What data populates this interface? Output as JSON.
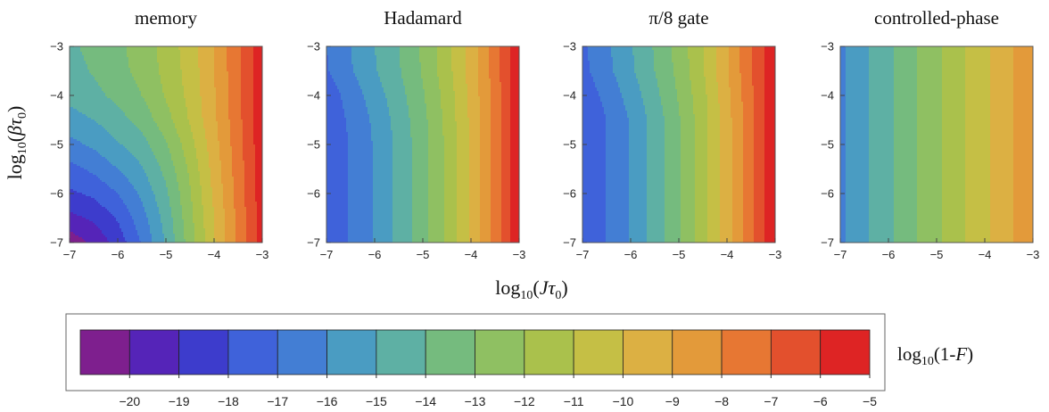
{
  "chart_data": {
    "type": "heatmap",
    "xlabel": "log10(Jτ0)",
    "ylabel": "log10(βτ0)",
    "xlim": [
      -7,
      -3
    ],
    "ylim": [
      -7,
      -3
    ],
    "x_ticks": [
      "−7",
      "−6",
      "−5",
      "−4",
      "−3"
    ],
    "y_ticks": [
      "−7",
      "−6",
      "−5",
      "−4",
      "−3"
    ],
    "colorbar": {
      "label": "log10(1-F)",
      "levels": [
        -21,
        -20,
        -19,
        -18,
        -17,
        -16,
        -15,
        -14,
        -13,
        -12,
        -11,
        -10,
        -9,
        -8,
        -7,
        -6,
        -5,
        -4
      ],
      "tick_values": [
        -20,
        -19,
        -18,
        -17,
        -16,
        -15,
        -14,
        -13,
        -12,
        -11,
        -10,
        -9,
        -8,
        -7,
        -6,
        -5
      ],
      "tick_labels": [
        "−20",
        "−19",
        "−18",
        "−17",
        "−16",
        "−15",
        "−14",
        "−13",
        "−12",
        "−11",
        "−10",
        "−9",
        "−8",
        "−7",
        "−6",
        "−5"
      ],
      "colors": [
        "#7e1f8e",
        "#5524b8",
        "#3d3ccc",
        "#3f62da",
        "#437ed4",
        "#4a9cc2",
        "#5eb0a4",
        "#75bb7e",
        "#8fc062",
        "#aac14c",
        "#c5bf45",
        "#dcb043",
        "#e39a3a",
        "#e77733",
        "#e3502d",
        "#de2424"
      ]
    },
    "panels": [
      {
        "title": "memory",
        "contour_step": 1,
        "x_nodes": [
          -7,
          -6.5,
          -6,
          -5.5,
          -5,
          -4.5,
          -4,
          -3.5,
          -3
        ],
        "y_nodes": [
          -3,
          -3.5,
          -4,
          -4.5,
          -5,
          -5.5,
          -6,
          -6.5,
          -7
        ],
        "values": [
          [
            -14.2,
            -13.7,
            -13.2,
            -12.6,
            -11.6,
            -10.5,
            -9.0,
            -7.2,
            -5.2
          ],
          [
            -14.4,
            -13.9,
            -13.3,
            -12.7,
            -11.7,
            -10.6,
            -9.0,
            -7.2,
            -5.2
          ],
          [
            -14.7,
            -14.3,
            -13.7,
            -13.0,
            -11.9,
            -10.7,
            -9.1,
            -7.2,
            -5.2
          ],
          [
            -15.4,
            -15.0,
            -14.4,
            -13.6,
            -12.4,
            -10.9,
            -9.2,
            -7.3,
            -5.3
          ],
          [
            -16.3,
            -15.8,
            -15.1,
            -14.4,
            -13.1,
            -11.4,
            -9.4,
            -7.4,
            -5.3
          ],
          [
            -17.3,
            -16.8,
            -16.0,
            -15.1,
            -13.7,
            -11.8,
            -9.6,
            -7.5,
            -5.4
          ],
          [
            -18.2,
            -17.8,
            -17.0,
            -15.8,
            -14.2,
            -12.1,
            -9.8,
            -7.6,
            -5.4
          ],
          [
            -19.3,
            -18.8,
            -17.9,
            -16.4,
            -14.6,
            -12.3,
            -10.0,
            -7.7,
            -5.5
          ],
          [
            -20.6,
            -19.8,
            -18.6,
            -16.9,
            -14.9,
            -12.5,
            -10.1,
            -7.8,
            -5.5
          ]
        ]
      },
      {
        "title": "Hadamard",
        "contour_step": 0.5,
        "x_nodes": [
          -7,
          -6.5,
          -6,
          -5.5,
          -5,
          -4.5,
          -4,
          -3.5,
          -3
        ],
        "y_nodes": [
          -3,
          -3.5,
          -4,
          -4.5,
          -5,
          -5.5,
          -6,
          -6.5,
          -7
        ],
        "values": [
          [
            -17.0,
            -16.0,
            -15.0,
            -14.0,
            -12.8,
            -11.4,
            -9.6,
            -7.5,
            -5.1
          ],
          [
            -17.1,
            -16.1,
            -15.1,
            -14.1,
            -12.9,
            -11.4,
            -9.6,
            -7.5,
            -5.1
          ],
          [
            -17.6,
            -16.6,
            -15.5,
            -14.4,
            -13.1,
            -11.6,
            -9.7,
            -7.6,
            -5.1
          ],
          [
            -17.8,
            -16.8,
            -15.8,
            -14.6,
            -13.3,
            -11.7,
            -9.8,
            -7.6,
            -5.1
          ],
          [
            -17.9,
            -16.9,
            -15.9,
            -14.7,
            -13.4,
            -11.8,
            -9.8,
            -7.6,
            -5.1
          ],
          [
            -17.9,
            -16.9,
            -15.9,
            -14.7,
            -13.4,
            -11.8,
            -9.8,
            -7.6,
            -5.1
          ],
          [
            -17.9,
            -16.9,
            -15.9,
            -14.7,
            -13.4,
            -11.8,
            -9.8,
            -7.6,
            -5.1
          ],
          [
            -17.9,
            -16.9,
            -15.9,
            -14.7,
            -13.4,
            -11.8,
            -9.8,
            -7.6,
            -5.1
          ],
          [
            -17.9,
            -16.9,
            -15.9,
            -14.7,
            -13.4,
            -11.8,
            -9.8,
            -7.6,
            -5.1
          ]
        ]
      },
      {
        "title": "π/8 gate",
        "contour_step": 1,
        "x_nodes": [
          -7,
          -6.5,
          -6,
          -5.5,
          -5,
          -4.5,
          -4,
          -3.5,
          -3
        ],
        "y_nodes": [
          -3,
          -3.5,
          -4,
          -4.5,
          -5,
          -5.5,
          -6,
          -6.5,
          -7
        ],
        "values": [
          [
            -17.2,
            -16.2,
            -15.1,
            -13.9,
            -12.6,
            -11.0,
            -9.1,
            -7.1,
            -5.0
          ],
          [
            -17.3,
            -16.3,
            -15.2,
            -14.0,
            -12.7,
            -11.1,
            -9.1,
            -7.1,
            -5.0
          ],
          [
            -17.7,
            -16.7,
            -15.6,
            -14.3,
            -12.9,
            -11.3,
            -9.3,
            -7.2,
            -5.0
          ],
          [
            -18.0,
            -17.0,
            -15.9,
            -14.6,
            -13.1,
            -11.4,
            -9.4,
            -7.3,
            -5.0
          ],
          [
            -18.0,
            -17.0,
            -15.9,
            -14.6,
            -13.1,
            -11.4,
            -9.4,
            -7.3,
            -5.0
          ],
          [
            -18.0,
            -17.0,
            -15.9,
            -14.6,
            -13.1,
            -11.4,
            -9.4,
            -7.3,
            -5.0
          ],
          [
            -18.0,
            -17.0,
            -15.9,
            -14.6,
            -13.1,
            -11.4,
            -9.4,
            -7.3,
            -5.0
          ],
          [
            -18.0,
            -17.0,
            -15.9,
            -14.6,
            -13.1,
            -11.4,
            -9.4,
            -7.3,
            -5.0
          ],
          [
            -18.0,
            -17.0,
            -15.9,
            -14.6,
            -13.1,
            -11.4,
            -9.4,
            -7.3,
            -5.0
          ]
        ]
      },
      {
        "title": "controlled-phase",
        "contour_step": 1,
        "x_nodes": [
          -7,
          -6.5,
          -6,
          -5.5,
          -5,
          -4.5,
          -4,
          -3.5,
          -3
        ],
        "y_nodes": [
          -3,
          -3.5,
          -4,
          -4.5,
          -5,
          -5.5,
          -6,
          -6.5,
          -7
        ],
        "values": [
          [
            -16.2,
            -15.2,
            -14.2,
            -13.2,
            -12.2,
            -11.2,
            -10.2,
            -9.2,
            -8.2
          ],
          [
            -16.2,
            -15.2,
            -14.2,
            -13.2,
            -12.2,
            -11.2,
            -10.2,
            -9.2,
            -8.2
          ],
          [
            -16.2,
            -15.2,
            -14.2,
            -13.2,
            -12.2,
            -11.2,
            -10.2,
            -9.2,
            -8.2
          ],
          [
            -16.2,
            -15.2,
            -14.2,
            -13.2,
            -12.2,
            -11.2,
            -10.2,
            -9.2,
            -8.2
          ],
          [
            -16.2,
            -15.2,
            -14.2,
            -13.2,
            -12.2,
            -11.2,
            -10.2,
            -9.2,
            -8.2
          ],
          [
            -16.2,
            -15.2,
            -14.2,
            -13.2,
            -12.2,
            -11.2,
            -10.2,
            -9.2,
            -8.2
          ],
          [
            -16.2,
            -15.2,
            -14.2,
            -13.2,
            -12.2,
            -11.2,
            -10.2,
            -9.2,
            -8.2
          ],
          [
            -16.2,
            -15.2,
            -14.2,
            -13.2,
            -12.2,
            -11.2,
            -10.2,
            -9.2,
            -8.2
          ],
          [
            -16.2,
            -15.2,
            -14.2,
            -13.2,
            -12.2,
            -11.2,
            -10.2,
            -9.2,
            -8.2
          ]
        ]
      }
    ]
  }
}
